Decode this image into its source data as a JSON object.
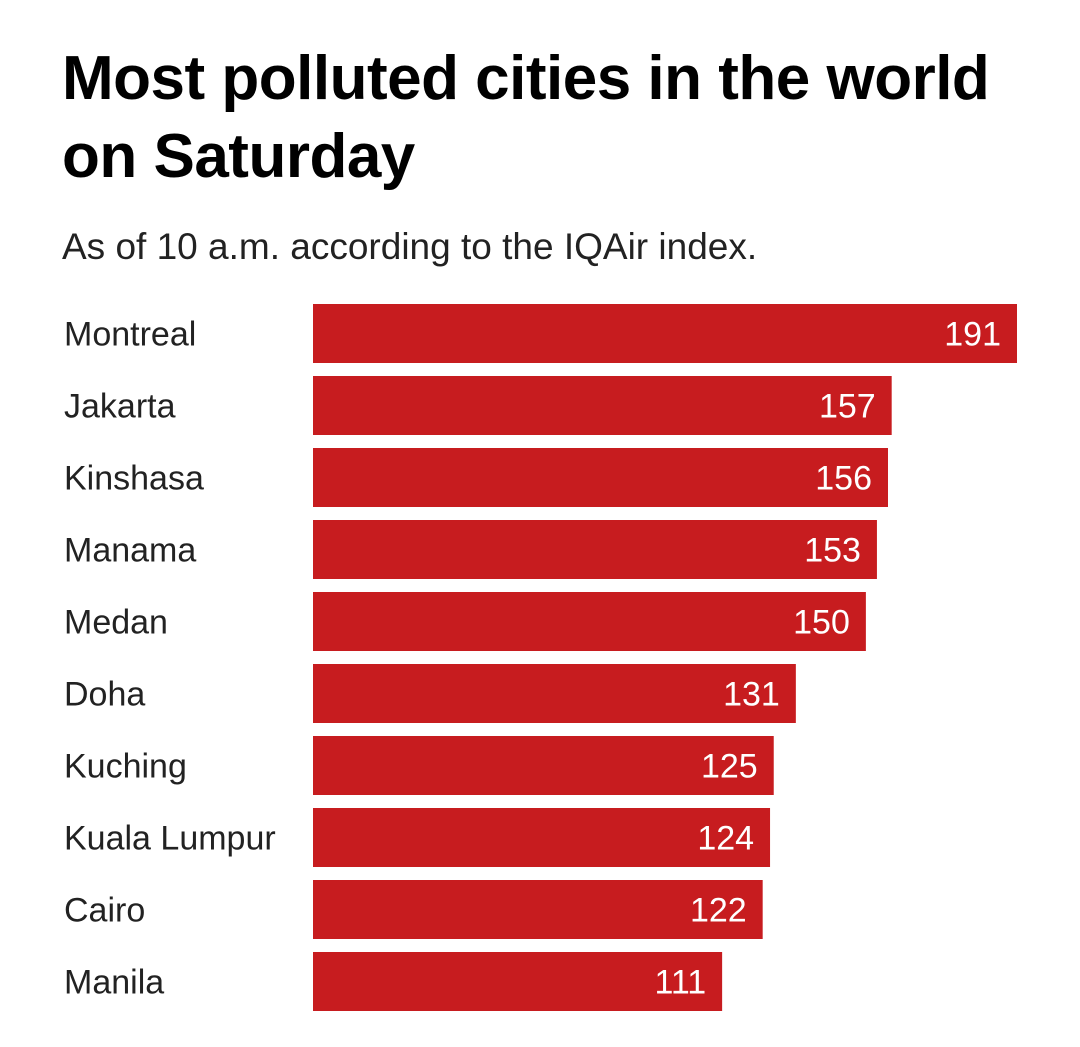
{
  "title": "Most polluted cities in the world on Saturday",
  "subtitle": "As of 10 a.m. according to the IQAir index.",
  "colors": {
    "bar": "#c71c1f",
    "bar_label": "#ffffff",
    "category_label": "#222222"
  },
  "chart_data": {
    "type": "bar",
    "orientation": "horizontal",
    "title": "Most polluted cities in the world on Saturday",
    "subtitle": "As of 10 a.m. according to the IQAir index.",
    "categories": [
      "Montreal",
      "Jakarta",
      "Kinshasa",
      "Manama",
      "Medan",
      "Doha",
      "Kuching",
      "Kuala Lumpur",
      "Cairo",
      "Manila"
    ],
    "values": [
      191,
      157,
      156,
      153,
      150,
      131,
      125,
      124,
      122,
      111
    ],
    "xlim": [
      0,
      191
    ],
    "grid": false,
    "legend": "none",
    "data_labels": "inside-end"
  }
}
